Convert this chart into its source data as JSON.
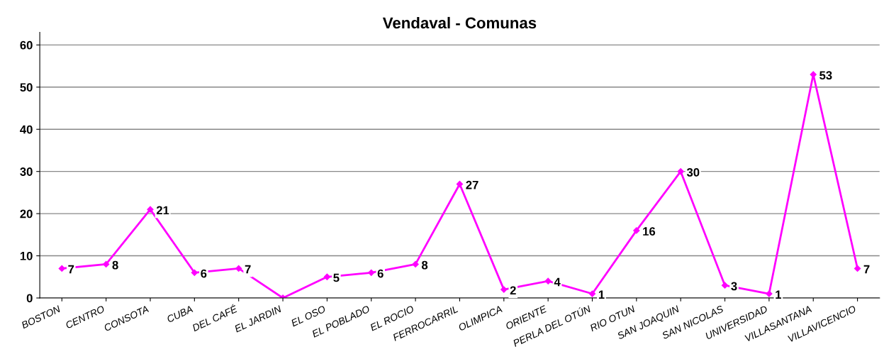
{
  "chart_data": {
    "type": "line",
    "title": "Vendaval - Comunas",
    "categories": [
      "BOSTON",
      "CENTRO",
      "CONSOTA",
      "CUBA",
      "DEL CAFÉ",
      "EL JARDIN",
      "EL OSO",
      "EL POBLADO",
      "EL ROCIO",
      "FERROCARRIL",
      "OLIMPICA",
      "ORIENTE",
      "PERLA DEL OTÚN",
      "RIO OTUN",
      "SAN JOAQUIN",
      "SAN NICOLAS",
      "UNIVERSIDAD",
      "VILLASANTANA",
      "VILLAVICENCIO"
    ],
    "series": [
      {
        "color": "#ff00ff",
        "values": [
          7,
          8,
          21,
          6,
          7,
          0,
          5,
          6,
          8,
          27,
          2,
          4,
          1,
          16,
          30,
          3,
          1,
          53,
          7
        ],
        "value_labels": [
          "7",
          "8",
          "21",
          "6",
          "7",
          null,
          "5",
          "6",
          "8",
          "27",
          "2",
          "4",
          "1",
          "16",
          "30",
          "3",
          "1",
          "53",
          "7"
        ]
      }
    ],
    "ylim": [
      0,
      63
    ],
    "yticks": [
      0,
      10,
      20,
      30,
      40,
      50,
      60
    ],
    "grid": "y",
    "marker": "diamond",
    "line_style": "solid"
  }
}
